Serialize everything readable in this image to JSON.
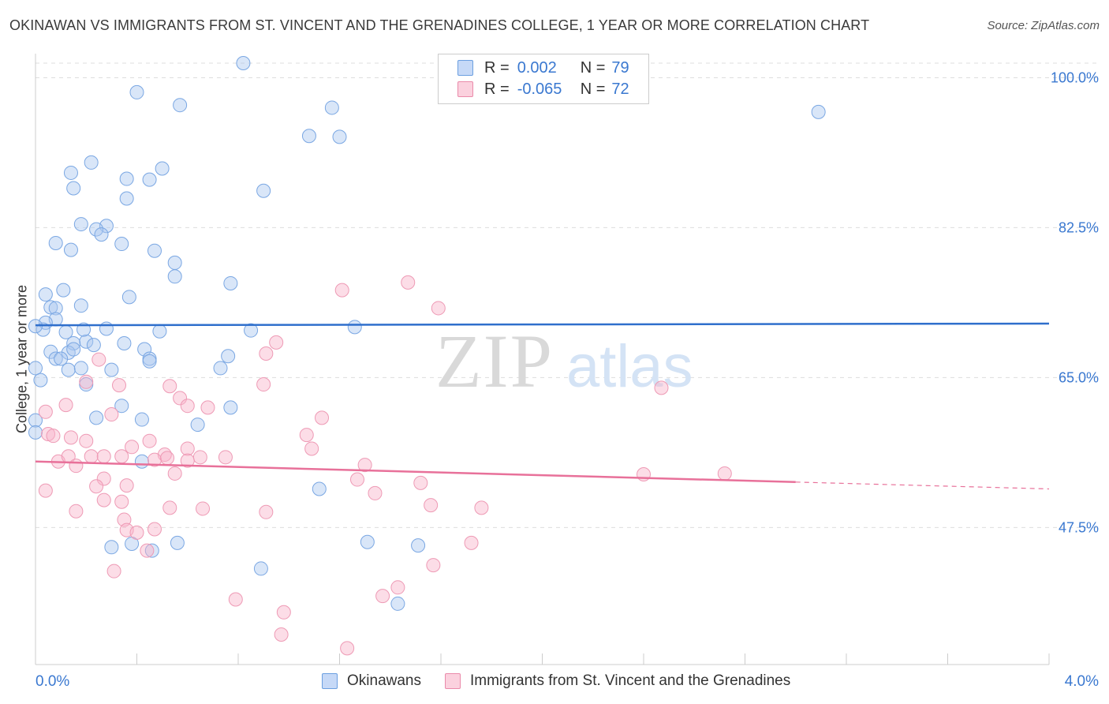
{
  "title": "OKINAWAN VS IMMIGRANTS FROM ST. VINCENT AND THE GRENADINES COLLEGE, 1 YEAR OR MORE CORRELATION CHART",
  "source": "Source: ZipAtlas.com",
  "watermark": {
    "zip": "ZIP",
    "atlas": "atlas"
  },
  "legend": {
    "r_label": "R =",
    "n_label": "N =",
    "series1": {
      "r": "0.002",
      "n": "79"
    },
    "series2": {
      "r": "-0.065",
      "n": "72"
    }
  },
  "colors": {
    "blue": "#3a78d0",
    "blue_fill": "#c6d9f7",
    "pink": "#e8719a",
    "pink_fill": "#fbd1de",
    "grid": "#dddddd"
  },
  "chart_data": {
    "type": "scatter",
    "title": "OKINAWAN VS IMMIGRANTS FROM ST. VINCENT AND THE GRENADINES COLLEGE, 1 YEAR OR MORE CORRELATION CHART",
    "xlabel": "",
    "ylabel": "College, 1 year or more",
    "xlim": [
      0,
      4.0
    ],
    "ylim": [
      31.5,
      101.7
    ],
    "x_tick_labels": [
      "0.0%",
      "4.0%"
    ],
    "y_ticks": [
      47.5,
      65.0,
      82.5,
      100.0
    ],
    "y_tick_labels": [
      "47.5%",
      "65.0%",
      "82.5%",
      "100.0%"
    ],
    "legend_position": "top-center",
    "series": [
      {
        "name": "Okinawans",
        "color": "#3a78d0",
        "r": 0.002,
        "n": 79,
        "trend": {
          "x": [
            0.0,
            4.0
          ],
          "y": [
            71.1,
            71.3
          ]
        },
        "points": [
          [
            0.82,
            101.7
          ],
          [
            0.4,
            98.3
          ],
          [
            0.57,
            96.8
          ],
          [
            1.17,
            96.5
          ],
          [
            3.09,
            96.0
          ],
          [
            1.08,
            93.2
          ],
          [
            1.2,
            93.1
          ],
          [
            0.22,
            90.1
          ],
          [
            0.5,
            89.4
          ],
          [
            0.14,
            88.9
          ],
          [
            0.36,
            88.2
          ],
          [
            0.45,
            88.1
          ],
          [
            0.15,
            87.1
          ],
          [
            0.9,
            86.8
          ],
          [
            0.36,
            85.9
          ],
          [
            0.18,
            82.9
          ],
          [
            0.28,
            82.7
          ],
          [
            0.24,
            82.3
          ],
          [
            0.26,
            81.7
          ],
          [
            0.08,
            80.7
          ],
          [
            0.34,
            80.6
          ],
          [
            0.14,
            79.9
          ],
          [
            0.47,
            79.8
          ],
          [
            0.55,
            78.4
          ],
          [
            0.55,
            76.8
          ],
          [
            0.77,
            76.0
          ],
          [
            0.04,
            74.7
          ],
          [
            0.11,
            75.2
          ],
          [
            0.06,
            73.2
          ],
          [
            0.37,
            74.4
          ],
          [
            0.18,
            73.4
          ],
          [
            0.08,
            73.1
          ],
          [
            0.08,
            71.8
          ],
          [
            0.04,
            71.4
          ],
          [
            0.03,
            70.6
          ],
          [
            0.2,
            69.2
          ],
          [
            0.15,
            69.0
          ],
          [
            0.12,
            70.3
          ],
          [
            0.28,
            70.7
          ],
          [
            0.49,
            70.4
          ],
          [
            0.85,
            70.5
          ],
          [
            1.26,
            70.9
          ],
          [
            0.06,
            68.0
          ],
          [
            0.08,
            67.2
          ],
          [
            0.13,
            67.9
          ],
          [
            0.15,
            68.3
          ],
          [
            0.23,
            68.8
          ],
          [
            0.19,
            70.6
          ],
          [
            0.35,
            69.0
          ],
          [
            0.43,
            68.3
          ],
          [
            0.45,
            67.2
          ],
          [
            0.45,
            66.9
          ],
          [
            0.1,
            67.2
          ],
          [
            0.13,
            65.9
          ],
          [
            0.18,
            66.1
          ],
          [
            0.3,
            65.9
          ],
          [
            0.73,
            66.1
          ],
          [
            0.76,
            67.5
          ],
          [
            0.02,
            64.7
          ],
          [
            0.2,
            64.2
          ],
          [
            0.34,
            61.7
          ],
          [
            0.42,
            60.1
          ],
          [
            0.24,
            60.3
          ],
          [
            0.64,
            59.5
          ],
          [
            0.77,
            61.5
          ],
          [
            0.42,
            55.2
          ],
          [
            1.12,
            52.0
          ],
          [
            0.3,
            45.2
          ],
          [
            0.38,
            45.6
          ],
          [
            0.46,
            44.8
          ],
          [
            0.56,
            45.7
          ],
          [
            0.89,
            42.7
          ],
          [
            1.31,
            45.8
          ],
          [
            1.51,
            45.4
          ],
          [
            1.43,
            38.6
          ],
          [
            0.0,
            71.0
          ],
          [
            0.0,
            66.1
          ],
          [
            0.0,
            60.0
          ],
          [
            0.0,
            58.6
          ]
        ]
      },
      {
        "name": "Immigrants from St. Vincent and the Grenadines",
        "color": "#e8719a",
        "r": -0.065,
        "n": 72,
        "trend": {
          "x": [
            0.0,
            3.0
          ],
          "y": [
            55.2,
            52.8
          ]
        },
        "trend_dashed": {
          "x": [
            3.0,
            4.0
          ],
          "y": [
            52.8,
            52.0
          ]
        },
        "points": [
          [
            1.47,
            76.1
          ],
          [
            1.21,
            75.2
          ],
          [
            1.59,
            73.1
          ],
          [
            0.95,
            69.1
          ],
          [
            0.91,
            67.8
          ],
          [
            0.25,
            67.1
          ],
          [
            0.2,
            64.5
          ],
          [
            0.33,
            64.1
          ],
          [
            0.53,
            64.0
          ],
          [
            0.57,
            62.6
          ],
          [
            0.6,
            61.7
          ],
          [
            0.68,
            61.5
          ],
          [
            0.9,
            64.2
          ],
          [
            1.13,
            60.3
          ],
          [
            0.12,
            61.8
          ],
          [
            0.04,
            61.0
          ],
          [
            0.3,
            60.7
          ],
          [
            0.05,
            58.4
          ],
          [
            0.07,
            58.2
          ],
          [
            0.14,
            58.0
          ],
          [
            0.2,
            57.6
          ],
          [
            0.38,
            56.9
          ],
          [
            0.45,
            57.6
          ],
          [
            0.51,
            56.0
          ],
          [
            0.6,
            56.7
          ],
          [
            0.65,
            55.7
          ],
          [
            0.75,
            55.7
          ],
          [
            1.07,
            58.3
          ],
          [
            1.09,
            56.7
          ],
          [
            0.09,
            55.2
          ],
          [
            0.13,
            55.8
          ],
          [
            0.22,
            55.8
          ],
          [
            0.27,
            55.8
          ],
          [
            0.16,
            54.7
          ],
          [
            0.34,
            55.8
          ],
          [
            0.47,
            55.4
          ],
          [
            0.52,
            55.6
          ],
          [
            0.6,
            55.3
          ],
          [
            0.27,
            53.2
          ],
          [
            0.24,
            52.3
          ],
          [
            0.36,
            52.4
          ],
          [
            0.55,
            53.8
          ],
          [
            1.3,
            54.8
          ],
          [
            0.04,
            51.8
          ],
          [
            0.27,
            50.7
          ],
          [
            0.34,
            50.5
          ],
          [
            0.53,
            49.8
          ],
          [
            0.66,
            49.7
          ],
          [
            0.91,
            49.3
          ],
          [
            0.16,
            49.4
          ],
          [
            0.35,
            48.4
          ],
          [
            0.36,
            47.2
          ],
          [
            0.4,
            46.9
          ],
          [
            0.47,
            47.3
          ],
          [
            1.27,
            53.1
          ],
          [
            1.34,
            51.5
          ],
          [
            1.52,
            52.7
          ],
          [
            1.56,
            50.1
          ],
          [
            1.76,
            49.8
          ],
          [
            2.4,
            53.7
          ],
          [
            2.72,
            53.8
          ],
          [
            2.47,
            63.8
          ],
          [
            0.31,
            42.4
          ],
          [
            0.44,
            44.8
          ],
          [
            1.57,
            43.1
          ],
          [
            1.72,
            45.7
          ],
          [
            0.79,
            39.1
          ],
          [
            0.98,
            37.6
          ],
          [
            0.97,
            35.0
          ],
          [
            1.37,
            39.5
          ],
          [
            1.43,
            40.5
          ],
          [
            1.23,
            33.4
          ]
        ]
      }
    ]
  }
}
